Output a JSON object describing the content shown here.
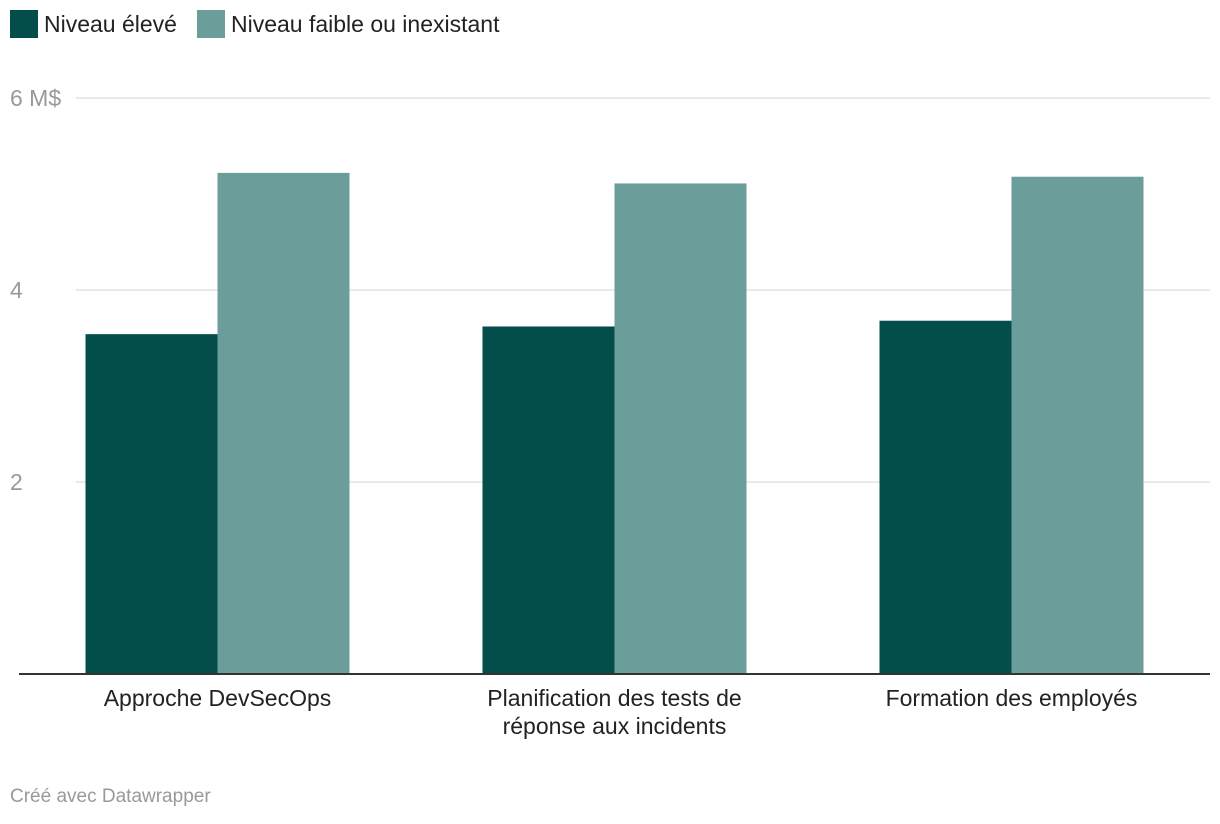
{
  "chart_data": {
    "type": "bar",
    "categories": [
      [
        "Approche DevSecOps"
      ],
      [
        "Planification des tests de",
        "réponse aux incidents"
      ],
      [
        "Formation des employés"
      ]
    ],
    "series": [
      {
        "name": "Niveau élevé",
        "color": "#034d4a",
        "values": [
          3.54,
          3.62,
          3.68
        ]
      },
      {
        "name": "Niveau faible ou inexistant",
        "color": "#6b9e9a",
        "values": [
          5.22,
          5.11,
          5.18
        ]
      }
    ],
    "yticks": [
      {
        "value": 2,
        "label": "2"
      },
      {
        "value": 4,
        "label": "4"
      },
      {
        "value": 6,
        "label": "6 M$"
      }
    ],
    "ylim": [
      0,
      6
    ],
    "grid": true,
    "legend_position": "top-left"
  },
  "footer": {
    "credit": "Créé avec Datawrapper"
  }
}
